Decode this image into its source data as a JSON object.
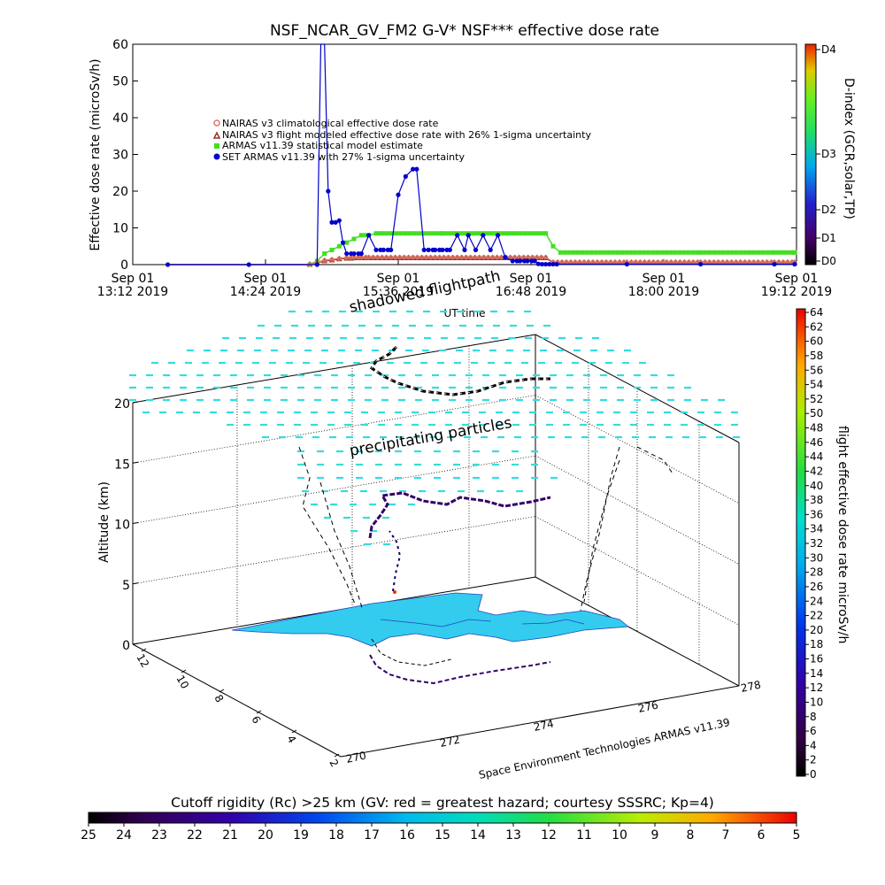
{
  "title": "NSF_NCAR_GV_FM2 G-V* NSF*** effective dose rate",
  "chart_data": [
    {
      "type": "line",
      "ylabel": "Effective dose rate (microSv/h)",
      "xlabel": "UT time",
      "ylim": [
        0,
        60
      ],
      "yticks": [
        "0",
        "10",
        "20",
        "30",
        "40",
        "50",
        "60"
      ],
      "xtick_labels": [
        {
          "line1": "Sep 01",
          "line2": "13:12 2019"
        },
        {
          "line1": "Sep 01",
          "line2": "14:24 2019"
        },
        {
          "line1": "Sep 01",
          "line2": "15:36 2019"
        },
        {
          "line1": "Sep 01",
          "line2": "16:48 2019"
        },
        {
          "line1": "Sep 01",
          "line2": "18:00 2019"
        },
        {
          "line1": "Sep 01",
          "line2": "19:12 2019"
        }
      ],
      "xlim_min": [
        792,
        1152
      ],
      "legend": [
        "NAIRAS v3 climatological effective dose rate",
        "NAIRAS v3 flight modeled effective dose rate with 26% 1-sigma uncertainty",
        "ARMAS v11.39 statistical model estimate",
        "SET ARMAS v11.39 with 27% 1-sigma uncertainty"
      ],
      "legend_placement": "upper-left",
      "colorbar": {
        "label": "D-index (GCR,solar,TP)",
        "ticks": [
          "D0",
          "D1",
          "D2",
          "D3",
          "D4"
        ],
        "tick_values": [
          0,
          1,
          2,
          3,
          4
        ]
      },
      "series": [
        {
          "name": "SET ARMAS v11.39 with 27% 1-sigma uncertainty",
          "color": "#0000cc",
          "x": [
            811,
            855,
            892,
            894,
            896,
            898,
            900,
            902,
            904,
            906,
            908,
            912,
            916,
            920,
            924,
            928,
            932,
            936,
            940,
            944,
            946,
            950,
            956,
            960,
            964,
            968,
            972,
            974,
            978,
            982,
            986,
            990,
            994,
            998,
            1002,
            1006,
            1010,
            1012,
            1014,
            1016,
            1018,
            1020,
            1022,
            1060,
            1100,
            1140,
            1151
          ],
          "y": [
            0,
            0,
            0,
            60,
            60,
            20,
            11.5,
            11.5,
            12,
            6,
            3,
            3,
            3,
            8,
            4,
            4,
            4,
            19,
            24,
            26,
            26,
            4,
            4,
            4,
            4,
            8,
            4,
            8,
            4,
            8,
            4,
            8,
            2,
            1,
            1,
            1,
            1,
            0.2,
            0.1,
            0.1,
            0.1,
            0.1,
            0.1,
            0.1,
            0.1,
            0.1,
            0.1
          ]
        },
        {
          "name": "ARMAS v11.39 statistical model estimate",
          "color": "#44dd22",
          "x": [
            811,
            855,
            888,
            892,
            896,
            900,
            904,
            908,
            912,
            916,
            920,
            924,
            928,
            960,
            1000,
            1016,
            1020,
            1024,
            1060,
            1100,
            1140,
            1151
          ],
          "y": [
            0,
            0,
            0,
            1,
            3,
            4,
            5,
            6,
            7,
            8,
            8,
            8.5,
            8.5,
            8.5,
            8.5,
            8.5,
            5,
            3.3,
            3.3,
            3.3,
            3.3,
            3.3
          ]
        },
        {
          "name": "NAIRAS v3 flight modeled effective dose rate with 26% 1-sigma uncertainty",
          "color": "#993322",
          "x": [
            811,
            855,
            888,
            892,
            896,
            900,
            904,
            908,
            912,
            916,
            920,
            1016,
            1020,
            1060,
            1100,
            1140,
            1151
          ],
          "y": [
            0,
            0,
            0,
            0.5,
            1,
            1.2,
            1.5,
            1.7,
            1.8,
            1.8,
            1.8,
            1.8,
            0.5,
            0.5,
            0.5,
            0.5,
            0.5
          ]
        },
        {
          "name": "NAIRAS v3 climatological effective dose rate",
          "color": "#dd7766",
          "x": [
            811,
            855,
            888,
            892,
            896,
            900,
            904,
            908,
            912,
            916,
            920,
            1016,
            1020,
            1060,
            1100,
            1140,
            1151
          ],
          "y": [
            0,
            0,
            0,
            0.6,
            1.2,
            1.4,
            1.7,
            1.9,
            2,
            2,
            2,
            2,
            0.7,
            0.7,
            0.7,
            0.7,
            0.7
          ]
        }
      ]
    },
    {
      "type": "scatter",
      "xlabel": "",
      "ylabel": "Altitude (km)",
      "zticks": [
        "0",
        "5",
        "10",
        "15",
        "20"
      ],
      "lat_ticks": [
        "2",
        "4",
        "6",
        "8",
        "10",
        "12"
      ],
      "lon_ticks": [
        "270",
        "272",
        "274",
        "276",
        "278"
      ],
      "annotations": [
        "shadowed flightpath",
        "precipitating particles"
      ],
      "caption": "Space Environment Technologies ARMAS v11.39",
      "colorbar": {
        "label": "flight effective dose rate microSv/h",
        "ticks": [
          "0",
          "2",
          "4",
          "6",
          "8",
          "10",
          "12",
          "14",
          "16",
          "18",
          "20",
          "22",
          "24",
          "26",
          "28",
          "30",
          "32",
          "34",
          "36",
          "38",
          "40",
          "42",
          "44",
          "46",
          "48",
          "50",
          "52",
          "54",
          "56",
          "58",
          "60",
          "62",
          "64"
        ]
      }
    }
  ],
  "bottom_bar": {
    "title": "Cutoff rigidity (Rc) >25 km (GV: red = greatest hazard; courtesy SSSRC; Kp=4)",
    "ticks": [
      "25",
      "24",
      "23",
      "22",
      "21",
      "20",
      "19",
      "18",
      "17",
      "16",
      "15",
      "14",
      "13",
      "12",
      "11",
      "10",
      "9",
      "8",
      "7",
      "6",
      "5"
    ]
  },
  "colors": {
    "armas": "#0000cc",
    "statistical": "#44dd22",
    "nairas_flight": "#993322",
    "nairas_clim": "#dd7766",
    "particles": "#33dddd",
    "land": "#33ccee"
  }
}
